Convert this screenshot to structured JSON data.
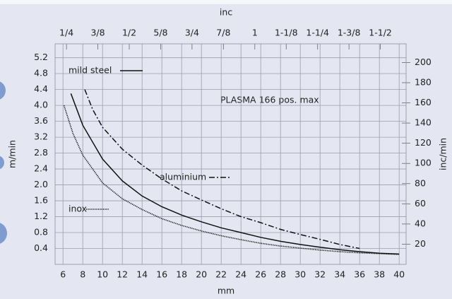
{
  "chart_data": {
    "type": "line",
    "annotation": "PLASMA 166 pos. max",
    "xlabel": "mm",
    "ylabel": "m/min",
    "y2label": "inc/min",
    "x2label": "inc",
    "xlim": [
      5.2,
      40.7
    ],
    "xticks": [
      6,
      8,
      10,
      12,
      14,
      16,
      18,
      20,
      22,
      24,
      26,
      28,
      30,
      32,
      34,
      36,
      38,
      40
    ],
    "ylim": [
      0,
      5.55
    ],
    "yticks": [
      0.4,
      0.8,
      1.2,
      1.6,
      {
        "value": 2,
        "label": "2.0"
      },
      2.4,
      2.8,
      3.2,
      3.6,
      {
        "value": 4,
        "label": "4.0"
      },
      4.4,
      4.8,
      5.2
    ],
    "y2lim": [
      0,
      218.5
    ],
    "y2ticks": [
      20,
      40,
      60,
      80,
      100,
      120,
      140,
      160,
      180,
      200
    ],
    "x2lim": [
      0.2047,
      1.6024
    ],
    "x2ticks": [
      {
        "value": 0.25,
        "label": "1/4"
      },
      {
        "value": 0.375,
        "label": "3/8"
      },
      {
        "value": 0.5,
        "label": "1/2"
      },
      {
        "value": 0.625,
        "label": "5/8"
      },
      {
        "value": 0.75,
        "label": "3/4"
      },
      {
        "value": 0.875,
        "label": "7/8"
      },
      1,
      {
        "value": 1.125,
        "label": "1-1/8"
      },
      {
        "value": 1.25,
        "label": "1-1/4"
      },
      {
        "value": 1.375,
        "label": "1-3/8"
      },
      {
        "value": 1.5,
        "label": "1-1/2"
      }
    ],
    "grid": true,
    "series": [
      {
        "name": "mild steel",
        "color": "#111111",
        "dash": "solid",
        "x": [
          6.8,
          8,
          10,
          12,
          14,
          16,
          18,
          20,
          22,
          24,
          26,
          28,
          30,
          32,
          34,
          36,
          38,
          40
        ],
        "values": [
          4.3,
          3.5,
          2.65,
          2.1,
          1.72,
          1.45,
          1.24,
          1.07,
          0.92,
          0.8,
          0.68,
          0.58,
          0.5,
          0.43,
          0.37,
          0.32,
          0.28,
          0.26
        ]
      },
      {
        "name": "aluminium",
        "color": "#111111",
        "dash": "dashdot",
        "x": [
          8.2,
          9,
          10,
          12,
          14,
          16,
          18,
          20,
          22,
          24,
          26,
          28,
          30,
          32,
          34,
          36
        ],
        "values": [
          4.4,
          3.9,
          3.45,
          2.9,
          2.5,
          2.15,
          1.85,
          1.62,
          1.4,
          1.2,
          1.05,
          0.88,
          0.75,
          0.63,
          0.5,
          0.4
        ]
      },
      {
        "name": "inox",
        "color": "#111111",
        "dash": "dotted",
        "x": [
          6.1,
          7,
          8,
          10,
          12,
          14,
          16,
          18,
          20,
          22,
          24,
          26,
          28,
          30,
          32,
          34,
          36,
          38,
          40
        ],
        "values": [
          4.0,
          3.3,
          2.75,
          2.05,
          1.65,
          1.38,
          1.15,
          0.98,
          0.84,
          0.72,
          0.62,
          0.53,
          0.46,
          0.41,
          0.36,
          0.32,
          0.29,
          0.27,
          0.25
        ]
      }
    ]
  }
}
